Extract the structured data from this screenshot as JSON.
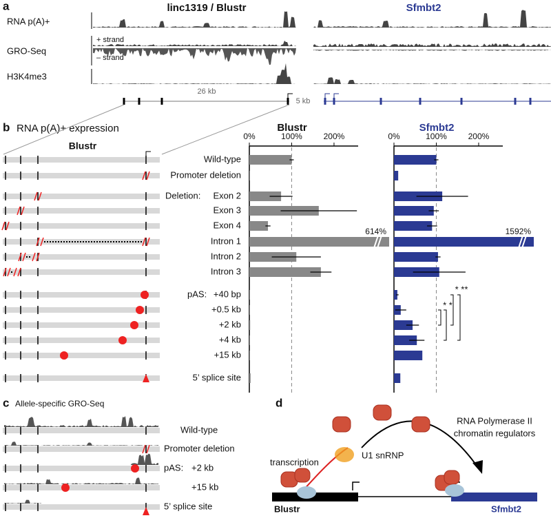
{
  "panel_a": {
    "label": "a",
    "title_left": "linc1319 / Blustr",
    "title_right": "Sfmbt2",
    "tracks": [
      "RNA p(A)+",
      "GRO-Seq",
      "H3K4me3"
    ],
    "strand_plus": "+ strand",
    "strand_minus": "– strand",
    "scale_left": "26 kb",
    "scale_right": "5 kb"
  },
  "panel_b": {
    "label": "b",
    "title": "RNA p(A)+ expression",
    "gene": "Blustr",
    "group_deletion": "Deletion:",
    "group_pas": "pAS:",
    "significance": [
      "* *",
      "* **"
    ]
  },
  "chart_data": {
    "type": "bar",
    "orientation": "horizontal",
    "categories": [
      "Wild-type",
      "Promoter deletion",
      "Exon 2",
      "Exon 3",
      "Exon 4",
      "Intron 1",
      "Intron 2",
      "Intron 3",
      "+40 bp",
      "+0.5 kb",
      "+2 kb",
      "+4 kb",
      "+15 kb",
      "5’ splice site"
    ],
    "series": [
      {
        "name": "Blustr",
        "color": "#888888",
        "values": [
          100,
          1,
          75,
          164,
          44,
          614,
          111,
          169,
          1,
          1,
          2,
          1,
          1,
          3
        ],
        "errors": [
          5,
          null,
          27,
          90,
          6,
          null,
          58,
          25,
          null,
          null,
          null,
          null,
          null,
          null
        ],
        "value_labels": [
          null,
          null,
          null,
          null,
          null,
          "614%",
          null,
          null,
          null,
          null,
          null,
          null,
          null,
          null
        ]
      },
      {
        "name": "Sfmbt2",
        "color": "#2b3a93",
        "values": [
          100,
          10,
          114,
          94,
          90,
          1592,
          104,
          107,
          8,
          16,
          44,
          54,
          67,
          15
        ],
        "errors": [
          5,
          null,
          61,
          12,
          12,
          null,
          6,
          62,
          3,
          13,
          15,
          18,
          null,
          null
        ],
        "value_labels": [
          null,
          null,
          null,
          null,
          null,
          "1592%",
          null,
          null,
          null,
          null,
          null,
          null,
          null,
          null
        ]
      }
    ],
    "xlim": [
      0,
      257
    ],
    "xticks": [
      {
        "value": 0,
        "label": "0%"
      },
      {
        "value": 100,
        "label": "100%"
      },
      {
        "value": 200,
        "label": "200%"
      }
    ],
    "refline": 100
  },
  "panel_c": {
    "label": "c",
    "title": "Allele-specific GRO-Seq",
    "group_pas": "pAS:",
    "rows": [
      "Wild-type",
      "Promoter deletion",
      "+2 kb",
      "+15 kb",
      "5’ splice site"
    ]
  },
  "panel_d": {
    "label": "d",
    "pol": "RNA Polymerase II",
    "regulators": "chromatin regulators",
    "transcription": "transcription",
    "u1": "U1 snRNP",
    "gene_left": "Blustr",
    "gene_right": "Sfmbt2"
  }
}
